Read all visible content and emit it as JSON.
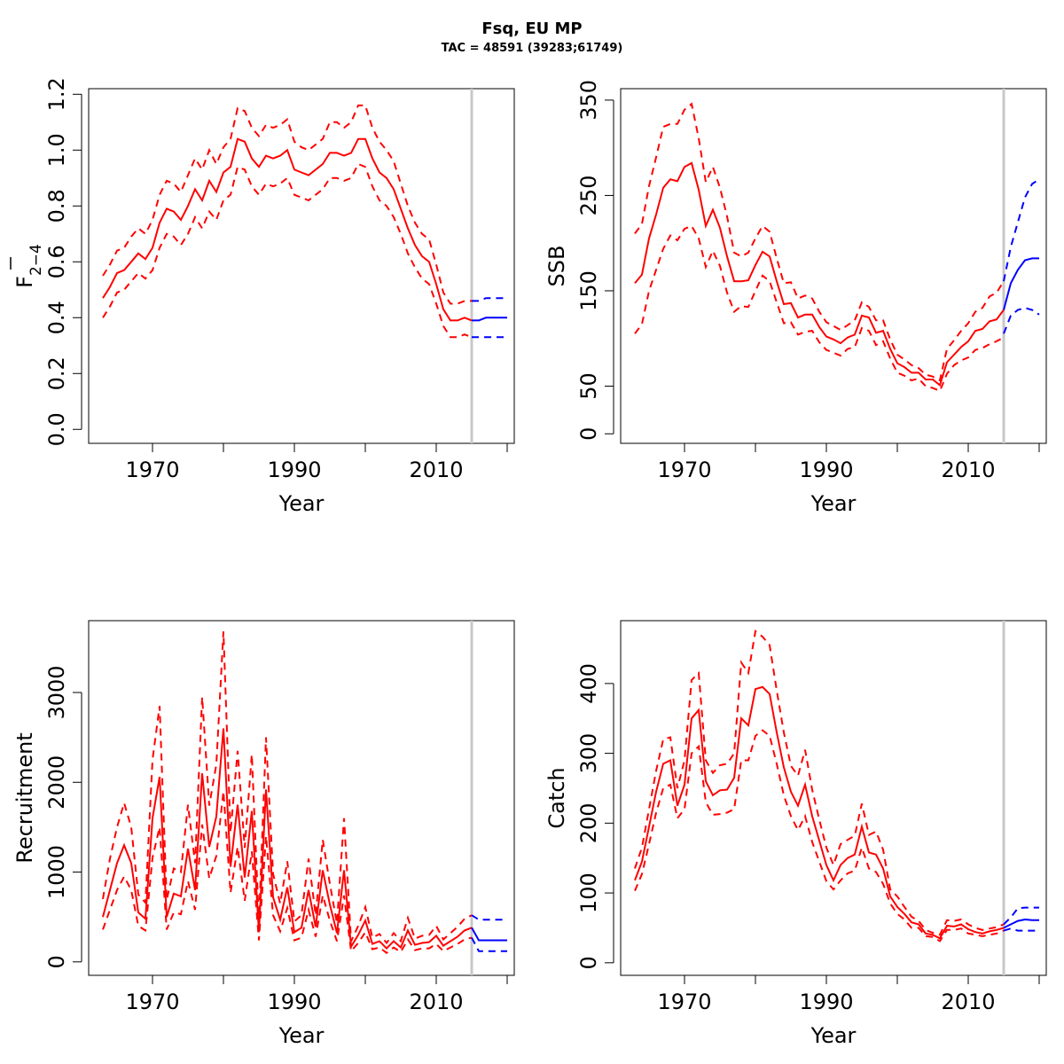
{
  "header": {
    "title": "Fsq, EU MP",
    "subtitle": "TAC = 48591 (39283;61749)"
  },
  "colors": {
    "history": "#ff0000",
    "projection": "#0000ff",
    "divider": "#c8c8c8"
  },
  "chart_data": [
    {
      "type": "line",
      "ylabel_main": "F",
      "ylabel_sub": "2−4",
      "xlabel": "Year",
      "xlim": [
        1961,
        2021
      ],
      "ylim": [
        -0.05,
        1.22
      ],
      "x_ticks": [
        1970,
        1990,
        2010
      ],
      "x_tick_marks": [
        1970,
        1980,
        1990,
        2000,
        2010,
        2020
      ],
      "y_ticks": [
        0.0,
        0.2,
        0.4,
        0.6,
        0.8,
        1.0,
        1.2
      ],
      "y_tick_labels": [
        "0.0",
        "0.2",
        "0.4",
        "0.6",
        "0.8",
        "1.0",
        "1.2"
      ],
      "divider_x": 2015,
      "history": {
        "x": [
          1963,
          1964,
          1965,
          1966,
          1967,
          1968,
          1969,
          1970,
          1971,
          1972,
          1973,
          1974,
          1975,
          1976,
          1977,
          1978,
          1979,
          1980,
          1981,
          1982,
          1983,
          1984,
          1985,
          1986,
          1987,
          1988,
          1989,
          1990,
          1991,
          1992,
          1993,
          1994,
          1995,
          1996,
          1997,
          1998,
          1999,
          2000,
          2001,
          2002,
          2003,
          2004,
          2005,
          2006,
          2007,
          2008,
          2009,
          2010,
          2011,
          2012,
          2013,
          2014,
          2015
        ],
        "mid": [
          0.47,
          0.51,
          0.56,
          0.57,
          0.6,
          0.63,
          0.61,
          0.65,
          0.74,
          0.79,
          0.78,
          0.75,
          0.8,
          0.86,
          0.82,
          0.89,
          0.85,
          0.92,
          0.94,
          1.04,
          1.03,
          0.97,
          0.94,
          0.98,
          0.97,
          0.98,
          1.0,
          0.93,
          0.92,
          0.91,
          0.93,
          0.95,
          0.99,
          0.99,
          0.98,
          0.99,
          1.04,
          1.04,
          0.97,
          0.92,
          0.9,
          0.86,
          0.79,
          0.72,
          0.66,
          0.62,
          0.6,
          0.52,
          0.43,
          0.39,
          0.39,
          0.4,
          0.39
        ],
        "upper": [
          0.55,
          0.59,
          0.64,
          0.65,
          0.69,
          0.72,
          0.7,
          0.75,
          0.84,
          0.89,
          0.88,
          0.85,
          0.91,
          0.97,
          0.93,
          1.0,
          0.95,
          1.01,
          1.04,
          1.15,
          1.14,
          1.08,
          1.05,
          1.09,
          1.08,
          1.09,
          1.11,
          1.03,
          1.01,
          1.0,
          1.02,
          1.04,
          1.1,
          1.1,
          1.08,
          1.1,
          1.16,
          1.16,
          1.08,
          1.03,
          1.0,
          0.96,
          0.88,
          0.8,
          0.74,
          0.7,
          0.68,
          0.59,
          0.49,
          0.45,
          0.45,
          0.46,
          0.46
        ],
        "lower": [
          0.4,
          0.44,
          0.49,
          0.5,
          0.53,
          0.56,
          0.54,
          0.57,
          0.65,
          0.7,
          0.69,
          0.66,
          0.7,
          0.76,
          0.72,
          0.78,
          0.75,
          0.82,
          0.84,
          0.94,
          0.93,
          0.87,
          0.84,
          0.88,
          0.87,
          0.88,
          0.9,
          0.84,
          0.83,
          0.82,
          0.84,
          0.86,
          0.9,
          0.9,
          0.89,
          0.9,
          0.95,
          0.94,
          0.87,
          0.82,
          0.8,
          0.76,
          0.7,
          0.63,
          0.58,
          0.54,
          0.52,
          0.45,
          0.37,
          0.33,
          0.33,
          0.34,
          0.33
        ]
      },
      "projection": {
        "x": [
          2015,
          2016,
          2017,
          2018,
          2019,
          2020
        ],
        "mid": [
          0.39,
          0.39,
          0.4,
          0.4,
          0.4,
          0.4
        ],
        "upper": [
          0.46,
          0.46,
          0.47,
          0.47,
          0.47,
          0.47
        ],
        "lower": [
          0.33,
          0.33,
          0.33,
          0.33,
          0.33,
          0.33
        ]
      }
    },
    {
      "type": "line",
      "ylabel_main": "SSB",
      "ylabel_sub": "",
      "xlabel": "Year",
      "xlim": [
        1961,
        2021
      ],
      "ylim": [
        -10,
        362
      ],
      "x_ticks": [
        1970,
        1990,
        2010
      ],
      "x_tick_marks": [
        1970,
        1980,
        1990,
        2000,
        2010,
        2020
      ],
      "y_ticks": [
        0,
        50,
        150,
        250,
        350
      ],
      "y_tick_labels": [
        "0",
        "50",
        "150",
        "250",
        "350"
      ],
      "divider_x": 2015,
      "history": {
        "x": [
          1963,
          1964,
          1965,
          1966,
          1967,
          1968,
          1969,
          1970,
          1971,
          1972,
          1973,
          1974,
          1975,
          1976,
          1977,
          1978,
          1979,
          1980,
          1981,
          1982,
          1983,
          1984,
          1985,
          1986,
          1987,
          1988,
          1989,
          1990,
          1991,
          1992,
          1993,
          1994,
          1995,
          1996,
          1997,
          1998,
          1999,
          2000,
          2001,
          2002,
          2003,
          2004,
          2005,
          2006,
          2007,
          2008,
          2009,
          2010,
          2011,
          2012,
          2013,
          2014,
          2015
        ],
        "mid": [
          158,
          167,
          205,
          230,
          258,
          267,
          265,
          280,
          284,
          256,
          218,
          235,
          216,
          186,
          160,
          160,
          161,
          177,
          191,
          186,
          160,
          136,
          137,
          122,
          125,
          125,
          112,
          102,
          99,
          95,
          101,
          104,
          124,
          122,
          106,
          108,
          89,
          74,
          70,
          64,
          64,
          57,
          57,
          51,
          75,
          83,
          91,
          97,
          108,
          110,
          118,
          120,
          130
        ],
        "upper": [
          210,
          220,
          260,
          290,
          322,
          325,
          325,
          340,
          346,
          310,
          264,
          280,
          258,
          228,
          190,
          186,
          190,
          205,
          218,
          212,
          184,
          158,
          159,
          142,
          145,
          142,
          128,
          117,
          113,
          109,
          114,
          119,
          138,
          133,
          119,
          119,
          99,
          83,
          78,
          72,
          69,
          62,
          60,
          56,
          89,
          98,
          108,
          116,
          128,
          132,
          144,
          148,
          160
        ],
        "lower": [
          105,
          115,
          150,
          172,
          194,
          208,
          203,
          215,
          218,
          205,
          175,
          192,
          176,
          148,
          128,
          134,
          133,
          150,
          166,
          160,
          138,
          116,
          117,
          104,
          107,
          108,
          96,
          88,
          85,
          82,
          89,
          91,
          111,
          108,
          93,
          97,
          79,
          64,
          61,
          56,
          58,
          50,
          48,
          45,
          63,
          72,
          77,
          80,
          88,
          90,
          94,
          97,
          101
        ]
      },
      "projection": {
        "x": [
          2015,
          2016,
          2017,
          2018,
          2019,
          2020
        ],
        "mid": [
          130,
          158,
          172,
          182,
          184,
          184
        ],
        "upper": [
          160,
          196,
          222,
          248,
          262,
          267
        ],
        "lower": [
          105,
          124,
          130,
          132,
          130,
          125
        ]
      }
    },
    {
      "type": "line",
      "ylabel_main": "Recruitment",
      "ylabel_sub": "",
      "xlabel": "Year",
      "xlim": [
        1961,
        2021
      ],
      "ylim": [
        -150,
        3800
      ],
      "x_ticks": [
        1970,
        1990,
        2010
      ],
      "x_tick_marks": [
        1970,
        1980,
        1990,
        2000,
        2010,
        2020
      ],
      "y_ticks": [
        0,
        1000,
        2000,
        3000
      ],
      "y_tick_labels": [
        "0",
        "1000",
        "2000",
        "3000"
      ],
      "divider_x": 2015,
      "history": {
        "x": [
          1963,
          1964,
          1965,
          1966,
          1967,
          1968,
          1969,
          1970,
          1971,
          1972,
          1973,
          1974,
          1975,
          1976,
          1977,
          1978,
          1979,
          1980,
          1981,
          1982,
          1983,
          1984,
          1985,
          1986,
          1987,
          1988,
          1989,
          1990,
          1991,
          1992,
          1993,
          1994,
          1995,
          1996,
          1997,
          1998,
          1999,
          2000,
          2001,
          2002,
          2003,
          2004,
          2005,
          2006,
          2007,
          2008,
          2009,
          2010,
          2011,
          2012,
          2013,
          2014,
          2015
        ],
        "mid": [
          500,
          800,
          1100,
          1300,
          1100,
          550,
          480,
          1600,
          2060,
          500,
          760,
          730,
          1260,
          800,
          2100,
          1280,
          1620,
          2600,
          1060,
          1750,
          940,
          1680,
          330,
          1920,
          720,
          470,
          830,
          330,
          380,
          800,
          390,
          1020,
          640,
          320,
          1020,
          170,
          300,
          460,
          200,
          230,
          150,
          230,
          160,
          350,
          190,
          210,
          220,
          290,
          180,
          230,
          280,
          350,
          380
        ],
        "upper": [
          700,
          1150,
          1500,
          1770,
          1500,
          750,
          660,
          2250,
          2850,
          690,
          1040,
          1000,
          1750,
          1100,
          2950,
          1740,
          2200,
          3680,
          1440,
          2350,
          1270,
          2310,
          440,
          2500,
          980,
          650,
          1120,
          450,
          520,
          1150,
          520,
          1360,
          870,
          430,
          1600,
          230,
          400,
          610,
          270,
          310,
          210,
          320,
          230,
          490,
          260,
          290,
          300,
          400,
          250,
          320,
          390,
          480,
          520
        ],
        "lower": [
          360,
          580,
          800,
          950,
          800,
          400,
          350,
          1160,
          1500,
          360,
          550,
          530,
          900,
          580,
          1530,
          930,
          1180,
          1900,
          770,
          1280,
          680,
          1230,
          240,
          1400,
          520,
          340,
          600,
          240,
          270,
          580,
          280,
          740,
          460,
          230,
          740,
          120,
          210,
          330,
          140,
          160,
          100,
          160,
          110,
          250,
          130,
          150,
          150,
          200,
          120,
          160,
          200,
          250,
          270
        ]
      },
      "projection": {
        "x": [
          2015,
          2016,
          2017,
          2018,
          2019,
          2020
        ],
        "mid": [
          380,
          240,
          240,
          240,
          240,
          240
        ],
        "upper": [
          520,
          470,
          470,
          470,
          470,
          470
        ],
        "lower": [
          270,
          120,
          120,
          120,
          120,
          120
        ]
      }
    },
    {
      "type": "line",
      "ylabel_main": "Catch",
      "ylabel_sub": "",
      "xlabel": "Year",
      "xlim": [
        1961,
        2021
      ],
      "ylim": [
        -18,
        490
      ],
      "x_ticks": [
        1970,
        1990,
        2010
      ],
      "x_tick_marks": [
        1970,
        1980,
        1990,
        2000,
        2010,
        2020
      ],
      "y_ticks": [
        0,
        100,
        200,
        300,
        400
      ],
      "y_tick_labels": [
        "0",
        "100",
        "200",
        "300",
        "400"
      ],
      "divider_x": 2015,
      "history": {
        "x": [
          1963,
          1964,
          1965,
          1966,
          1967,
          1968,
          1969,
          1970,
          1971,
          1972,
          1973,
          1974,
          1975,
          1976,
          1977,
          1978,
          1979,
          1980,
          1981,
          1982,
          1983,
          1984,
          1985,
          1986,
          1987,
          1988,
          1989,
          1990,
          1991,
          1992,
          1993,
          1994,
          1995,
          1996,
          1997,
          1998,
          1999,
          2000,
          2001,
          2002,
          2003,
          2004,
          2005,
          2006,
          2007,
          2008,
          2009,
          2010,
          2011,
          2012,
          2013,
          2014,
          2015
        ],
        "mid": [
          118,
          145,
          195,
          245,
          285,
          290,
          225,
          255,
          350,
          362,
          260,
          240,
          247,
          248,
          265,
          350,
          340,
          392,
          395,
          385,
          330,
          280,
          245,
          225,
          255,
          210,
          175,
          140,
          118,
          140,
          150,
          155,
          195,
          158,
          155,
          135,
          95,
          80,
          70,
          58,
          55,
          42,
          40,
          35,
          53,
          52,
          55,
          48,
          44,
          42,
          45,
          47,
          50
        ],
        "upper": [
          135,
          165,
          220,
          275,
          320,
          323,
          250,
          290,
          405,
          415,
          290,
          272,
          283,
          285,
          300,
          430,
          415,
          475,
          467,
          455,
          390,
          330,
          282,
          268,
          305,
          248,
          205,
          165,
          140,
          170,
          176,
          182,
          228,
          183,
          188,
          162,
          105,
          95,
          80,
          66,
          60,
          47,
          43,
          40,
          61,
          60,
          62,
          55,
          50,
          47,
          49,
          51,
          55
        ],
        "lower": [
          103,
          127,
          170,
          215,
          250,
          255,
          207,
          220,
          300,
          310,
          230,
          212,
          213,
          215,
          220,
          290,
          290,
          325,
          333,
          325,
          285,
          240,
          210,
          190,
          210,
          173,
          145,
          117,
          105,
          118,
          128,
          132,
          165,
          135,
          130,
          113,
          85,
          70,
          62,
          50,
          50,
          38,
          37,
          31,
          47,
          47,
          49,
          42,
          40,
          38,
          40,
          42,
          46
        ]
      },
      "projection": {
        "x": [
          2015,
          2016,
          2017,
          2018,
          2019,
          2020
        ],
        "mid": [
          50,
          55,
          60,
          62,
          61,
          61
        ],
        "upper": [
          55,
          65,
          78,
          79,
          79,
          79
        ],
        "lower": [
          46,
          49,
          46,
          46,
          46,
          46
        ]
      }
    }
  ]
}
